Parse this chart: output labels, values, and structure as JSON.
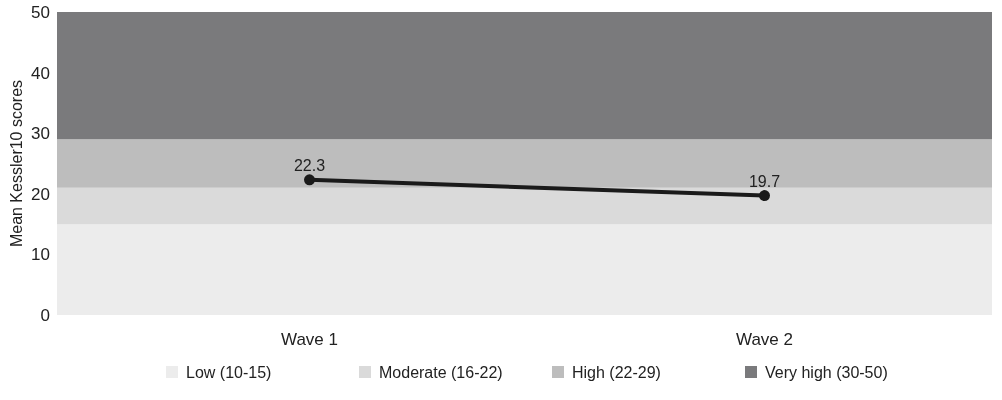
{
  "chart_data": {
    "type": "line",
    "ylabel": "Mean Kessler10 scores",
    "categories": [
      "Wave 1",
      "Wave 2"
    ],
    "series": [
      {
        "color": "#1a1a1a",
        "values": [
          22.3,
          19.7
        ]
      }
    ],
    "ylim": [
      0,
      50
    ],
    "yticks": [
      0,
      10,
      20,
      30,
      40,
      50
    ],
    "data_labels": true,
    "marker": "circle",
    "legend": "bottom",
    "bands": [
      {
        "axis": "y",
        "from": 0,
        "to": 15,
        "label": "Low (10-15)",
        "color": "#ececec"
      },
      {
        "axis": "y",
        "from": 15,
        "to": 21,
        "label": "Moderate (16-22)",
        "color": "#dadada"
      },
      {
        "axis": "y",
        "from": 21,
        "to": 29,
        "label": "High (22-29)",
        "color": "#bdbdbd"
      },
      {
        "axis": "y",
        "from": 29,
        "to": 50,
        "label": "Very high (30-50)",
        "color": "#7a7a7c"
      }
    ]
  }
}
